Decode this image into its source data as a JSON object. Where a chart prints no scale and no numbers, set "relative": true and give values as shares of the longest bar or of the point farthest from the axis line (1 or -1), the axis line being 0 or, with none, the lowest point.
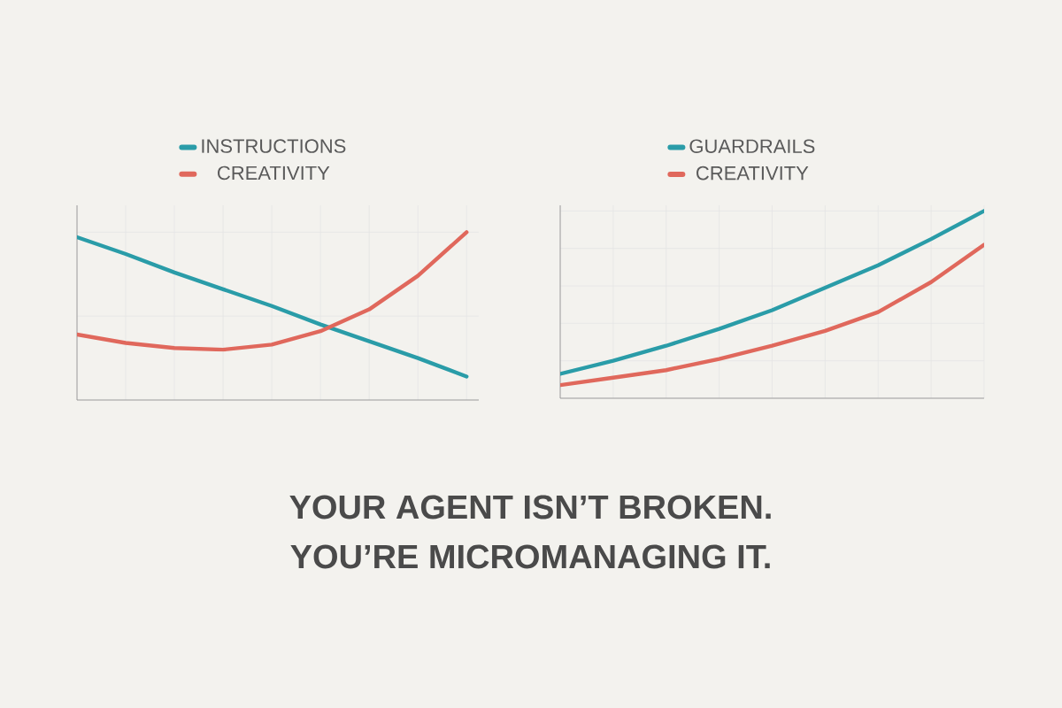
{
  "chart_data": [
    {
      "type": "line",
      "relative": true,
      "categories": [
        null,
        null,
        null,
        null,
        null,
        null,
        null,
        null,
        null
      ],
      "legend": "top left",
      "grid": true,
      "series": [
        {
          "name": "INSTRUCTIONS",
          "color": "#2a9ca8",
          "values": [
            0.97,
            0.87,
            0.76,
            0.66,
            0.56,
            0.45,
            0.35,
            0.25,
            0.14
          ]
        },
        {
          "name": "CREATIVITY",
          "color": "#e0685c",
          "values": [
            0.39,
            0.34,
            0.31,
            0.3,
            0.33,
            0.41,
            0.54,
            0.74,
            1.0
          ]
        }
      ],
      "annotations": [
        "YOUR AGENT ISN’T BROKEN.",
        "YOU’RE MICROMANAGING IT."
      ]
    },
    {
      "type": "line",
      "relative": true,
      "categories": [
        null,
        null,
        null,
        null,
        null,
        null,
        null,
        null,
        null
      ],
      "legend": "top left",
      "grid": true,
      "series": [
        {
          "name": "GUARDRAILS",
          "color": "#2a9ca8",
          "values": [
            0.13,
            0.2,
            0.28,
            0.37,
            0.47,
            0.59,
            0.71,
            0.85,
            1.0
          ]
        },
        {
          "name": "CREATIVITY",
          "color": "#e0685c",
          "values": [
            0.07,
            0.11,
            0.15,
            0.21,
            0.28,
            0.36,
            0.46,
            0.62,
            0.82
          ]
        }
      ]
    }
  ]
}
